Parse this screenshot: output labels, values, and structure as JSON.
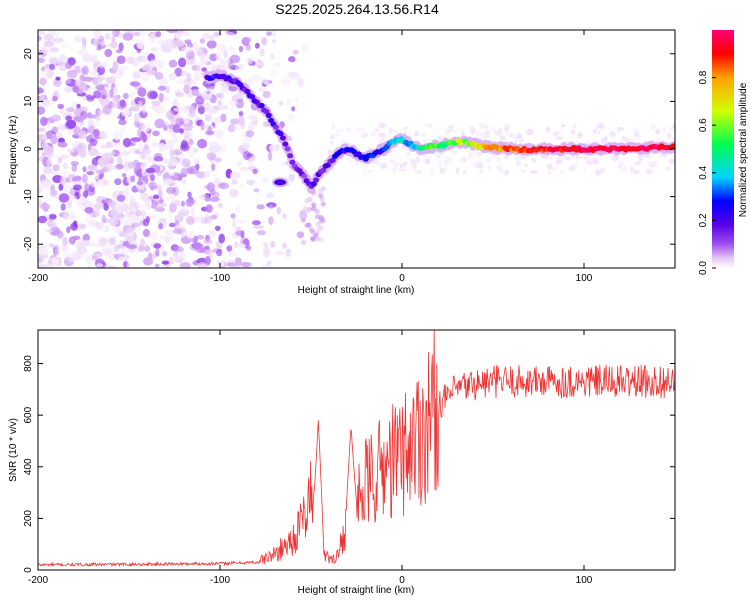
{
  "title": "S225.2025.264.13.56.R14",
  "chart_data": [
    {
      "type": "heatmap",
      "name": "spectrogram",
      "xlabel": "Height of straight line (km)",
      "ylabel": "Frequency (Hz)",
      "xlim": [
        -200,
        150
      ],
      "ylim": [
        -25,
        25
      ],
      "xticks": [
        -200,
        -100,
        0,
        100
      ],
      "yticks": [
        -20,
        -10,
        0,
        10,
        20
      ],
      "colorbar": {
        "label": "Normalized spectral amplitude",
        "range": [
          0.0,
          1.0
        ],
        "ticks": [
          0.0,
          0.2,
          0.4,
          0.6,
          0.8
        ],
        "colors": [
          "#ffffff",
          "#e6c8f5",
          "#a050f0",
          "#5a00e6",
          "#0000ff",
          "#00d2ff",
          "#00ff50",
          "#d2ff00",
          "#ffa000",
          "#ff0000",
          "#ff0078"
        ]
      },
      "ridge": {
        "x": [
          -107,
          -100,
          -90,
          -80,
          -75,
          -70,
          -65,
          -60,
          -55,
          -50,
          -45,
          -40,
          -35,
          -30,
          -25,
          -20,
          -15,
          -10,
          -5,
          0,
          5,
          10,
          15,
          20,
          25,
          30,
          35,
          40,
          45,
          50,
          60,
          70,
          80,
          100,
          120,
          150
        ],
        "y": [
          15,
          15.5,
          14,
          10,
          8,
          5,
          2,
          -3,
          -5,
          -8,
          -5,
          -3,
          -1,
          0,
          -1,
          -2,
          -1,
          0,
          1.5,
          2,
          1,
          0,
          0.5,
          0.5,
          1,
          1.5,
          1.5,
          1,
          0.5,
          0.3,
          0,
          -0.2,
          0,
          0,
          0,
          0.5
        ],
        "amplitude": [
          0.35,
          0.3,
          0.3,
          0.3,
          0.3,
          0.3,
          0.3,
          0.25,
          0.25,
          0.3,
          0.3,
          0.3,
          0.35,
          0.35,
          0.35,
          0.35,
          0.4,
          0.4,
          0.45,
          0.5,
          0.5,
          0.55,
          0.6,
          0.6,
          0.6,
          0.65,
          0.65,
          0.7,
          0.75,
          0.8,
          0.85,
          0.9,
          0.9,
          0.95,
          0.95,
          0.95
        ]
      },
      "side_blob": {
        "x": -67,
        "y": -7
      }
    },
    {
      "type": "line",
      "name": "snr",
      "xlabel": "Height of straight line (km)",
      "ylabel": "SNR (10 * v/v)",
      "xlim": [
        -200,
        150
      ],
      "ylim": [
        0,
        930
      ],
      "xticks": [
        -200,
        -100,
        0,
        100
      ],
      "yticks": [
        0,
        200,
        400,
        600,
        800
      ],
      "color": "#ee3333",
      "envelope": {
        "x": [
          -200,
          -150,
          -100,
          -80,
          -70,
          -60,
          -55,
          -50,
          -48,
          -45,
          -42,
          -40,
          -35,
          -30,
          -25,
          -20,
          -10,
          0,
          10,
          20,
          30,
          40,
          50,
          60,
          80,
          100,
          150
        ],
        "y": [
          20,
          22,
          25,
          30,
          60,
          120,
          180,
          300,
          200,
          120,
          60,
          40,
          60,
          200,
          260,
          330,
          400,
          450,
          530,
          640,
          700,
          720,
          730,
          730,
          730,
          730,
          730
        ]
      },
      "spikes": [
        {
          "x": -46,
          "y": 580
        },
        {
          "x": -28,
          "y": 560
        }
      ]
    }
  ]
}
